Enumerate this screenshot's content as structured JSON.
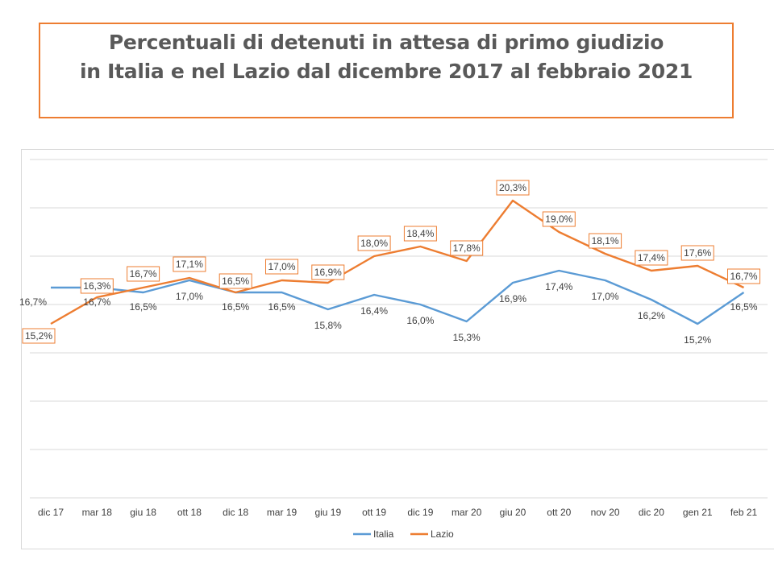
{
  "title": {
    "line1": "Percentuali di detenuti in attesa di primo giudizio",
    "line2": "in Italia e nel Lazio dal dicembre 2017 al febbraio 2021"
  },
  "chart_data": {
    "type": "line",
    "categories": [
      "dic 17",
      "mar 18",
      "giu 18",
      "ott 18",
      "dic 18",
      "mar 19",
      "giu 19",
      "ott 19",
      "dic 19",
      "mar 20",
      "giu 20",
      "ott 20",
      "nov 20",
      "dic 20",
      "gen 21",
      "feb 21"
    ],
    "series": [
      {
        "name": "Italia",
        "color": "#5B9BD5",
        "values": [
          16.7,
          16.7,
          16.5,
          17.0,
          16.5,
          16.5,
          15.8,
          16.4,
          16.0,
          15.3,
          16.9,
          17.4,
          17.0,
          16.2,
          15.2,
          16.5
        ],
        "labels": [
          "16,7%",
          "16,7%",
          "16,5%",
          "17,0%",
          "16,5%",
          "16,5%",
          "15,8%",
          "16,4%",
          "16,0%",
          "15,3%",
          "16,9%",
          "17,4%",
          "17,0%",
          "16,2%",
          "15,2%",
          "16,5%"
        ]
      },
      {
        "name": "Lazio",
        "color": "#ED7D31",
        "values": [
          15.2,
          16.3,
          16.7,
          17.1,
          16.5,
          17.0,
          16.9,
          18.0,
          18.4,
          17.8,
          20.3,
          19.0,
          18.1,
          17.4,
          17.6,
          16.7
        ],
        "labels": [
          "15,2%",
          "16,3%",
          "16,7%",
          "17,1%",
          "16,5%",
          "17,0%",
          "16,9%",
          "18,0%",
          "18,4%",
          "17,8%",
          "20,3%",
          "19,0%",
          "18,1%",
          "17,4%",
          "17,6%",
          "16,7%"
        ]
      }
    ],
    "ylim": [
      8,
      22
    ],
    "grid": true,
    "legend": "bottom",
    "title": "",
    "xlabel": "",
    "ylabel": ""
  }
}
